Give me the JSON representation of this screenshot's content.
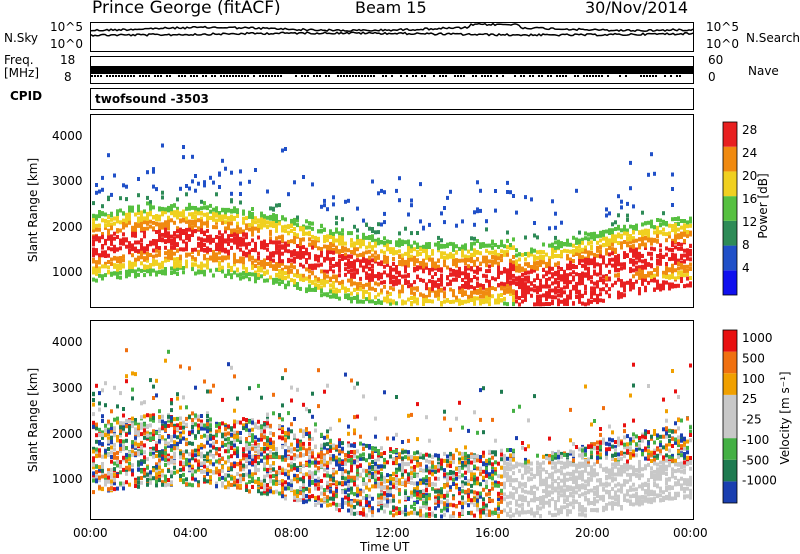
{
  "header": {
    "station": "Prince George (fitACF)",
    "beam": "Beam 15",
    "date": "30/Nov/2014"
  },
  "strip_noise": {
    "left_label": "N.Sky",
    "right_label": "N.Search",
    "left_ticks": [
      "10^5",
      "10^0"
    ],
    "right_ticks": [
      "10^5",
      "10^0"
    ]
  },
  "strip_freq": {
    "left_label_1": "Freq.",
    "left_label_2": "[MHz]",
    "left_ticks": [
      "18",
      "8"
    ],
    "right_label": "Nave",
    "right_ticks": [
      "60",
      "0"
    ]
  },
  "strip_cpid": {
    "label": "CPID",
    "value": "twofsound -3503"
  },
  "chart_data": [
    {
      "type": "heatmap",
      "name": "power",
      "ylabel": "Slant Range [km]",
      "ylim": [
        200,
        4600
      ],
      "yticks": [
        "4000",
        "3000",
        "2000",
        "1000"
      ],
      "colorbar_label": "Power [dB]",
      "colorbar_ticks": [
        "28",
        "24",
        "20",
        "16",
        "12",
        "8",
        "4"
      ],
      "colors": [
        "#1010ee",
        "#2050c8",
        "#2e8b57",
        "#56c040",
        "#f0d020",
        "#f08a10",
        "#e82020"
      ]
    },
    {
      "type": "heatmap",
      "name": "velocity",
      "ylabel": "Slant Range [km]",
      "ylim": [
        200,
        4600
      ],
      "yticks": [
        "4000",
        "3000",
        "2000",
        "1000"
      ],
      "colorbar_label": "Velocity [m s⁻¹]",
      "colorbar_ticks": [
        "1000",
        "500",
        "100",
        "25",
        "-25",
        "-100",
        "-500",
        "-1000"
      ],
      "colors": [
        "#1a3fb0",
        "#1e7a50",
        "#44b044",
        "#c8c8c8",
        "#c8c8c8",
        "#f0a000",
        "#f07010",
        "#e81010"
      ]
    }
  ],
  "xaxis": {
    "label": "Time UT",
    "ticks": [
      "00:00",
      "04:00",
      "08:00",
      "12:00",
      "16:00",
      "20:00",
      "00:00"
    ]
  }
}
